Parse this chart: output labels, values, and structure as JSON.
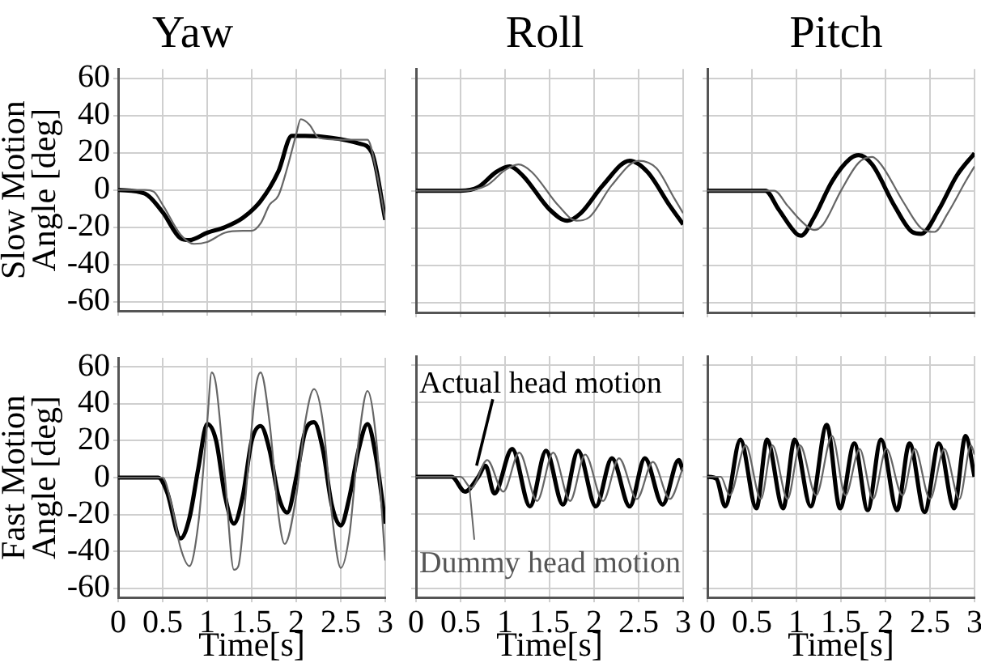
{
  "chart_data": [
    {
      "type": "line",
      "title": "Yaw",
      "ylabel": "Slow Motion\nAngle [deg]",
      "tick_labels": "y",
      "grid": true,
      "xlim": [
        0,
        3
      ],
      "xticks": [
        0,
        0.5,
        1,
        1.5,
        2,
        2.5,
        3
      ],
      "ylim": [
        -65,
        65
      ],
      "yticks": [
        -60,
        -40,
        -20,
        0,
        20,
        40,
        60
      ],
      "series": [
        {
          "color": "#000000",
          "x": [
            0,
            0.3,
            0.5,
            0.7,
            0.8,
            1.0,
            1.2,
            1.4,
            1.6,
            1.8,
            1.95,
            2.1,
            2.4,
            2.7,
            2.85,
            3
          ],
          "values": [
            0,
            -2,
            -12,
            -26,
            -27,
            -23,
            -20,
            -15,
            -6,
            10,
            29,
            29,
            28,
            25,
            20,
            -16
          ]
        },
        {
          "color": "#666666",
          "x": [
            0,
            0.3,
            0.4,
            0.5,
            0.7,
            0.85,
            1.0,
            1.2,
            1.4,
            1.5,
            1.6,
            1.7,
            1.8,
            1.9,
            2.0,
            2.05,
            2.15,
            2.25,
            2.5,
            2.8,
            2.9,
            3
          ],
          "values": [
            0,
            0,
            -1,
            -8,
            -24,
            -29,
            -28,
            -23,
            -22,
            -22,
            -18,
            -8,
            -3,
            12,
            30,
            38,
            35,
            28,
            27,
            27,
            10,
            -16
          ]
        }
      ]
    },
    {
      "type": "line",
      "title": "Roll",
      "tick_labels": false,
      "grid": true,
      "xlim": [
        0,
        3
      ],
      "xticks": [
        0,
        0.5,
        1,
        1.5,
        2,
        2.5,
        3
      ],
      "ylim": [
        -65,
        65
      ],
      "yticks": [
        -60,
        -40,
        -20,
        0,
        20,
        40,
        60
      ],
      "series": [
        {
          "color": "#000000",
          "x": [
            0,
            0.5,
            0.7,
            0.9,
            1.05,
            1.2,
            1.5,
            1.7,
            1.85,
            2.1,
            2.4,
            2.6,
            2.85,
            3
          ],
          "values": [
            0,
            0,
            2,
            10,
            13,
            8,
            -10,
            -16,
            -12,
            3,
            16,
            10,
            -8,
            -18
          ]
        },
        {
          "color": "#666666",
          "x": [
            0,
            0.5,
            0.8,
            1.0,
            1.15,
            1.3,
            1.6,
            1.8,
            1.95,
            2.2,
            2.5,
            2.7,
            2.9,
            3
          ],
          "values": [
            0,
            0,
            3,
            11,
            14,
            10,
            -8,
            -16,
            -14,
            3,
            16,
            12,
            -4,
            -12
          ]
        }
      ]
    },
    {
      "type": "line",
      "title": "Pitch",
      "tick_labels": false,
      "grid": true,
      "xlim": [
        0,
        3
      ],
      "xticks": [
        0,
        0.5,
        1,
        1.5,
        2,
        2.5,
        3
      ],
      "ylim": [
        -65,
        65
      ],
      "yticks": [
        -60,
        -40,
        -20,
        0,
        20,
        40,
        60
      ],
      "series": [
        {
          "color": "#000000",
          "x": [
            0,
            0.65,
            0.8,
            1.0,
            1.05,
            1.2,
            1.4,
            1.6,
            1.7,
            1.85,
            2.1,
            2.3,
            2.4,
            2.6,
            2.8,
            3
          ],
          "values": [
            0,
            0,
            -10,
            -23,
            -24,
            -14,
            5,
            17,
            19,
            14,
            -8,
            -22,
            -23,
            -10,
            8,
            20
          ]
        },
        {
          "color": "#666666",
          "x": [
            0,
            0.75,
            0.9,
            1.05,
            1.2,
            1.3,
            1.5,
            1.7,
            1.85,
            1.95,
            2.2,
            2.4,
            2.55,
            2.7,
            2.9,
            3
          ],
          "values": [
            0,
            0,
            -8,
            -16,
            -21,
            -18,
            0,
            15,
            18,
            14,
            -6,
            -20,
            -22,
            -12,
            5,
            13
          ]
        }
      ]
    },
    {
      "type": "line",
      "ylabel": "Fast Motion\nAngle [deg]",
      "xlabel": "Time[s]",
      "grid": true,
      "xlim": [
        0,
        3
      ],
      "xticks": [
        0,
        0.5,
        1,
        1.5,
        2,
        2.5,
        3
      ],
      "ylim": [
        -65,
        65
      ],
      "yticks": [
        -60,
        -40,
        -20,
        0,
        20,
        40,
        60
      ],
      "series": [
        {
          "color": "#000000",
          "x": [
            0,
            0.45,
            0.55,
            0.7,
            0.8,
            0.9,
            1.0,
            1.1,
            1.2,
            1.3,
            1.4,
            1.5,
            1.6,
            1.7,
            1.8,
            1.9,
            2.0,
            2.1,
            2.2,
            2.3,
            2.4,
            2.5,
            2.6,
            2.7,
            2.8,
            2.9,
            3
          ],
          "values": [
            0,
            0,
            -8,
            -33,
            -22,
            5,
            29,
            20,
            -10,
            -25,
            -10,
            20,
            28,
            15,
            -10,
            -19,
            0,
            25,
            30,
            15,
            -15,
            -26,
            -10,
            15,
            29,
            10,
            -25
          ]
        },
        {
          "color": "#666666",
          "x": [
            0,
            0.5,
            0.6,
            0.7,
            0.8,
            0.9,
            1.0,
            1.05,
            1.1,
            1.2,
            1.3,
            1.35,
            1.45,
            1.55,
            1.6,
            1.7,
            1.8,
            1.87,
            2.0,
            2.1,
            2.2,
            2.3,
            2.4,
            2.5,
            2.6,
            2.7,
            2.8,
            2.9,
            3
          ],
          "values": [
            0,
            0,
            -15,
            -38,
            -48,
            -25,
            30,
            57,
            50,
            0,
            -50,
            -48,
            0,
            50,
            57,
            30,
            -20,
            -36,
            -10,
            30,
            48,
            30,
            -20,
            -49,
            -30,
            20,
            47,
            20,
            -45
          ]
        }
      ]
    },
    {
      "type": "line",
      "xlabel": "Time[s]",
      "tick_labels": "x",
      "grid": true,
      "xlim": [
        0,
        3
      ],
      "xticks": [
        0,
        0.5,
        1,
        1.5,
        2,
        2.5,
        3
      ],
      "ylim": [
        -65,
        65
      ],
      "yticks": [
        -60,
        -40,
        -20,
        0,
        20,
        40,
        60
      ],
      "annotations": [
        {
          "text": "Actual head motion",
          "x": 0.68,
          "y": 6
        },
        {
          "text": "Dummy head motion",
          "x": 0.6,
          "y": -6
        }
      ],
      "series": [
        {
          "color": "#000000",
          "x": [
            0,
            0.4,
            0.55,
            0.7,
            0.78,
            0.88,
            1.08,
            1.28,
            1.46,
            1.65,
            1.82,
            2.02,
            2.2,
            2.4,
            2.57,
            2.77,
            2.95,
            3
          ],
          "values": [
            0,
            0,
            -8,
            0,
            6,
            -9,
            15,
            -16,
            14,
            -15,
            14,
            -16,
            10,
            -16,
            10,
            -15,
            9,
            3
          ]
        },
        {
          "color": "#666666",
          "x": [
            0,
            0.5,
            0.62,
            0.8,
            0.98,
            1.16,
            1.36,
            1.54,
            1.73,
            1.9,
            2.1,
            2.28,
            2.48,
            2.66,
            2.85,
            3
          ],
          "values": [
            0,
            0,
            -6,
            9,
            -8,
            13,
            -13,
            13,
            -13,
            12,
            -13,
            10,
            -12,
            8,
            -12,
            5
          ]
        }
      ]
    },
    {
      "type": "line",
      "xlabel": "Time[s]",
      "tick_labels": "x",
      "grid": true,
      "xlim": [
        0,
        3
      ],
      "xticks": [
        0,
        0.5,
        1,
        1.5,
        2,
        2.5,
        3
      ],
      "ylim": [
        -65,
        65
      ],
      "yticks": [
        -60,
        -40,
        -20,
        0,
        20,
        40,
        60
      ],
      "series": [
        {
          "color": "#000000",
          "x": [
            0,
            0.1,
            0.2,
            0.37,
            0.55,
            0.67,
            0.85,
            0.98,
            1.16,
            1.34,
            1.49,
            1.65,
            1.8,
            1.95,
            2.13,
            2.27,
            2.44,
            2.6,
            2.77,
            2.9,
            3
          ],
          "values": [
            0,
            -1,
            -16,
            20,
            -17,
            20,
            -17,
            20,
            -16,
            28,
            -17,
            18,
            -18,
            20,
            -18,
            18,
            -19,
            18,
            -17,
            22,
            0
          ]
        },
        {
          "color": "#666666",
          "x": [
            0,
            0.15,
            0.25,
            0.43,
            0.6,
            0.73,
            0.9,
            1.04,
            1.22,
            1.4,
            1.55,
            1.71,
            1.86,
            2.01,
            2.19,
            2.33,
            2.5,
            2.66,
            2.83,
            2.96,
            3
          ],
          "values": [
            0,
            0,
            -10,
            17,
            -12,
            17,
            -12,
            17,
            -10,
            22,
            -10,
            15,
            -12,
            15,
            -10,
            15,
            -12,
            15,
            -12,
            17,
            12
          ]
        }
      ]
    }
  ]
}
